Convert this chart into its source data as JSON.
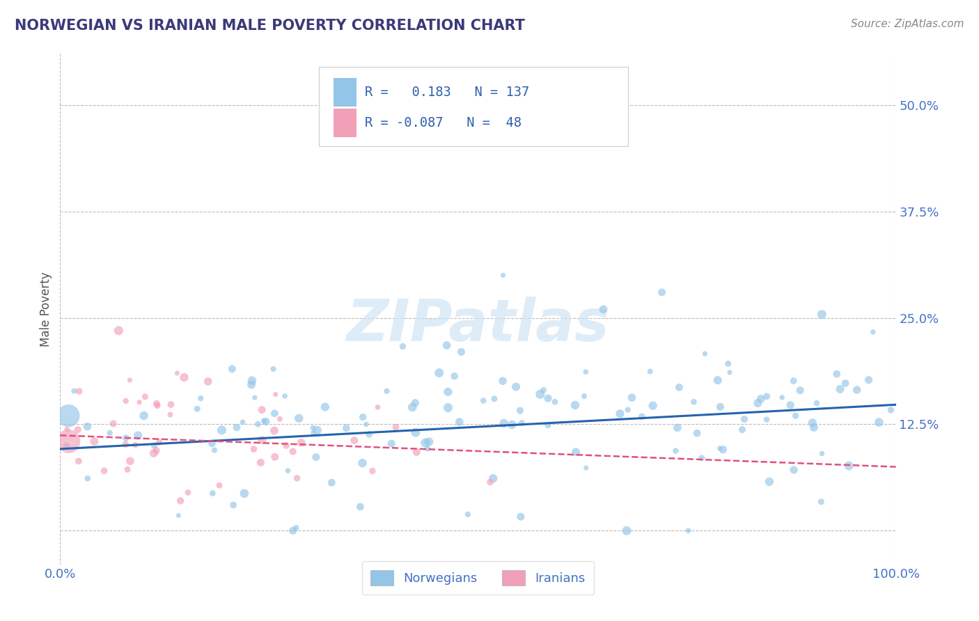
{
  "title": "NORWEGIAN VS IRANIAN MALE POVERTY CORRELATION CHART",
  "source": "Source: ZipAtlas.com",
  "ylabel": "Male Poverty",
  "xlim": [
    0.0,
    1.0
  ],
  "ylim": [
    -0.04,
    0.56
  ],
  "yticks": [
    0.0,
    0.125,
    0.25,
    0.375,
    0.5
  ],
  "ytick_labels": [
    "",
    "12.5%",
    "25.0%",
    "37.5%",
    "50.0%"
  ],
  "xticks": [
    0.0,
    1.0
  ],
  "xtick_labels": [
    "0.0%",
    "100.0%"
  ],
  "norwegian_color": "#92C5E8",
  "iranian_color": "#F2A0B8",
  "trend_norwegian_color": "#2563AE",
  "trend_iranian_color": "#E05080",
  "nor_trend_start": 0.096,
  "nor_trend_end": 0.148,
  "ira_trend_start": 0.112,
  "ira_trend_end": 0.075,
  "R_norwegian": 0.183,
  "N_norwegian": 137,
  "R_iranian": -0.087,
  "N_iranian": 48,
  "watermark": "ZIPatlas",
  "background_color": "#FFFFFF",
  "grid_color": "#BBBBBB",
  "title_color": "#3A3A7A",
  "axis_label_color": "#555555",
  "tick_color": "#4472C4",
  "source_color": "#888888",
  "legend_label_norwegian": "Norwegians",
  "legend_label_iranian": "Iranians"
}
